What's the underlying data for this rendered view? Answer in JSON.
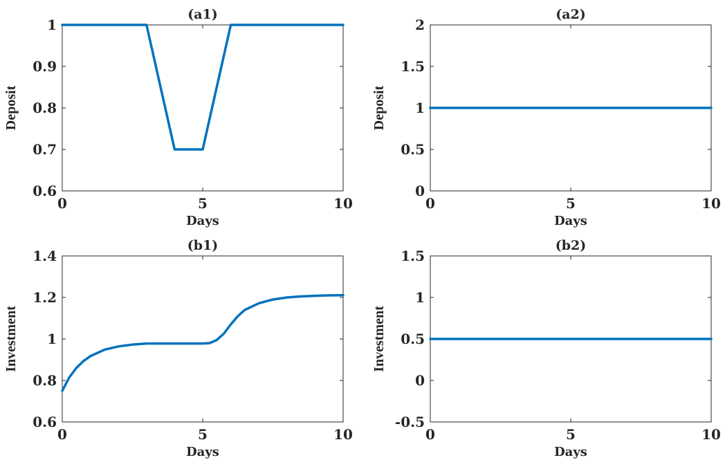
{
  "colors": {
    "series": "#0072BD",
    "axis": "#262626"
  },
  "chart_data": [
    {
      "id": "a1",
      "type": "line",
      "title": "(a1)",
      "xlabel": "Days",
      "ylabel": "Deposit",
      "xlim": [
        0,
        10
      ],
      "ylim": [
        0.6,
        1
      ],
      "xticks": [
        0,
        5,
        10
      ],
      "xtick_labels": [
        "0",
        "5",
        "10"
      ],
      "yticks": [
        0.6,
        0.7,
        0.8,
        0.9,
        1
      ],
      "ytick_labels": [
        "0.6",
        "0.7",
        "0.8",
        "0.9",
        "1"
      ],
      "grid": false,
      "series": [
        {
          "x": [
            0,
            3,
            4,
            5,
            6,
            10
          ],
          "y": [
            1,
            1,
            0.7,
            0.7,
            1,
            1
          ]
        }
      ]
    },
    {
      "id": "a2",
      "type": "line",
      "title": "(a2)",
      "xlabel": "Days",
      "ylabel": "Deposit",
      "xlim": [
        0,
        10
      ],
      "ylim": [
        0,
        2
      ],
      "xticks": [
        0,
        5,
        10
      ],
      "xtick_labels": [
        "0",
        "5",
        "10"
      ],
      "yticks": [
        0,
        0.5,
        1,
        1.5,
        2
      ],
      "ytick_labels": [
        "0",
        "0.5",
        "1",
        "1.5",
        "2"
      ],
      "grid": false,
      "series": [
        {
          "x": [
            0,
            10
          ],
          "y": [
            1,
            1
          ]
        }
      ]
    },
    {
      "id": "b1",
      "type": "line",
      "title": "(b1)",
      "xlabel": "Days",
      "ylabel": "Investment",
      "xlim": [
        0,
        10
      ],
      "ylim": [
        0.6,
        1.4
      ],
      "xticks": [
        0,
        5,
        10
      ],
      "xtick_labels": [
        "0",
        "5",
        "10"
      ],
      "yticks": [
        0.6,
        0.8,
        1,
        1.2,
        1.4
      ],
      "ytick_labels": [
        "0.6",
        "0.8",
        "1",
        "1.2",
        "1.4"
      ],
      "grid": false,
      "series": [
        {
          "x": [
            0,
            0.25,
            0.5,
            0.75,
            1,
            1.5,
            2,
            2.5,
            3,
            3.5,
            4,
            4.5,
            5,
            5.25,
            5.5,
            5.75,
            6,
            6.25,
            6.5,
            7,
            7.5,
            8,
            8.5,
            9,
            9.5,
            10
          ],
          "y": [
            0.75,
            0.815,
            0.86,
            0.893,
            0.917,
            0.948,
            0.964,
            0.973,
            0.978,
            0.978,
            0.978,
            0.978,
            0.978,
            0.98,
            0.995,
            1.025,
            1.07,
            1.11,
            1.14,
            1.172,
            1.19,
            1.2,
            1.205,
            1.208,
            1.21,
            1.211
          ]
        }
      ]
    },
    {
      "id": "b2",
      "type": "line",
      "title": "(b2)",
      "xlabel": "Days",
      "ylabel": "Investment",
      "xlim": [
        0,
        10
      ],
      "ylim": [
        -0.5,
        1.5
      ],
      "xticks": [
        0,
        5,
        10
      ],
      "xtick_labels": [
        "0",
        "5",
        "10"
      ],
      "yticks": [
        -0.5,
        0,
        0.5,
        1,
        1.5
      ],
      "ytick_labels": [
        "-0.5",
        "0",
        "0.5",
        "1",
        "1.5"
      ],
      "grid": false,
      "series": [
        {
          "x": [
            0,
            10
          ],
          "y": [
            0.5,
            0.5
          ]
        }
      ]
    }
  ]
}
